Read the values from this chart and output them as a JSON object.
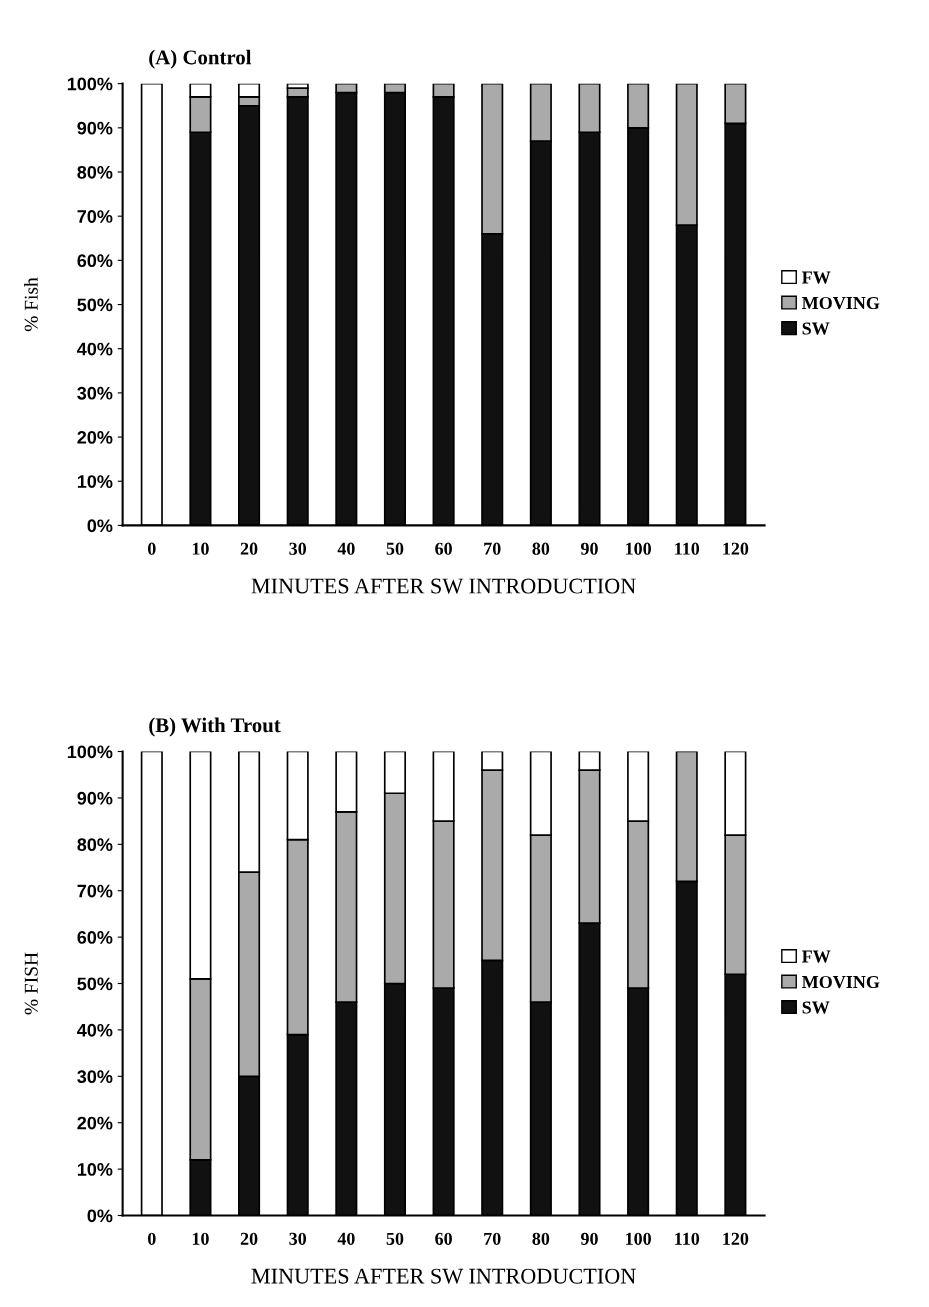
{
  "chart_data": [
    {
      "type": "bar",
      "title": "(A) Control",
      "xlabel": "MINUTES AFTER SW INTRODUCTION",
      "ylabel": "% Fish",
      "stacked": true,
      "legend": "right",
      "categories": [
        "0",
        "10",
        "20",
        "30",
        "40",
        "50",
        "60",
        "70",
        "80",
        "90",
        "100",
        "110",
        "120"
      ],
      "series": [
        {
          "name": "SW",
          "color": "#111111",
          "values": [
            0,
            89,
            95,
            97,
            98,
            98,
            97,
            66,
            87,
            89,
            90,
            68,
            91
          ]
        },
        {
          "name": "MOVING",
          "color": "#aaaaaa",
          "values": [
            0,
            8,
            2,
            2,
            2,
            2,
            3,
            34,
            13,
            11,
            10,
            32,
            9
          ]
        },
        {
          "name": "FW",
          "color": "#ffffff",
          "values": [
            100,
            3,
            3,
            1,
            0,
            0,
            0,
            0,
            0,
            0,
            0,
            0,
            0
          ]
        }
      ],
      "ylim": [
        0,
        100
      ],
      "yticks": [
        {
          "value": 0,
          "label": "0%"
        },
        {
          "value": 10,
          "label": "10%"
        },
        {
          "value": 20,
          "label": "20%"
        },
        {
          "value": 30,
          "label": "30%"
        },
        {
          "value": 40,
          "label": "40%"
        },
        {
          "value": 50,
          "label": "50%"
        },
        {
          "value": 60,
          "label": "60%"
        },
        {
          "value": 70,
          "label": "70%"
        },
        {
          "value": 80,
          "label": "80%"
        },
        {
          "value": 90,
          "label": "90%"
        },
        {
          "value": 100,
          "label": "100%"
        }
      ]
    },
    {
      "type": "bar",
      "title": "(B) With Trout",
      "xlabel": "MINUTES AFTER SW INTRODUCTION",
      "ylabel": "% FISH",
      "stacked": true,
      "legend": "right",
      "categories": [
        "0",
        "10",
        "20",
        "30",
        "40",
        "50",
        "60",
        "70",
        "80",
        "90",
        "100",
        "110",
        "120"
      ],
      "series": [
        {
          "name": "SW",
          "color": "#111111",
          "values": [
            0,
            12,
            30,
            39,
            46,
            50,
            49,
            55,
            46,
            63,
            49,
            72,
            52
          ]
        },
        {
          "name": "MOVING",
          "color": "#aaaaaa",
          "values": [
            0,
            39,
            44,
            42,
            41,
            41,
            36,
            41,
            36,
            33,
            36,
            28,
            30
          ]
        },
        {
          "name": "FW",
          "color": "#ffffff",
          "values": [
            100,
            49,
            26,
            19,
            13,
            9,
            15,
            4,
            18,
            4,
            15,
            0,
            18
          ]
        }
      ],
      "ylim": [
        0,
        100
      ],
      "yticks": [
        {
          "value": 0,
          "label": "0%"
        },
        {
          "value": 10,
          "label": "10%"
        },
        {
          "value": 20,
          "label": "20%"
        },
        {
          "value": 30,
          "label": "30%"
        },
        {
          "value": 40,
          "label": "40%"
        },
        {
          "value": 50,
          "label": "50%"
        },
        {
          "value": 60,
          "label": "60%"
        },
        {
          "value": 70,
          "label": "70%"
        },
        {
          "value": 80,
          "label": "80%"
        },
        {
          "value": 90,
          "label": "90%"
        },
        {
          "value": 100,
          "label": "100%"
        }
      ]
    }
  ]
}
